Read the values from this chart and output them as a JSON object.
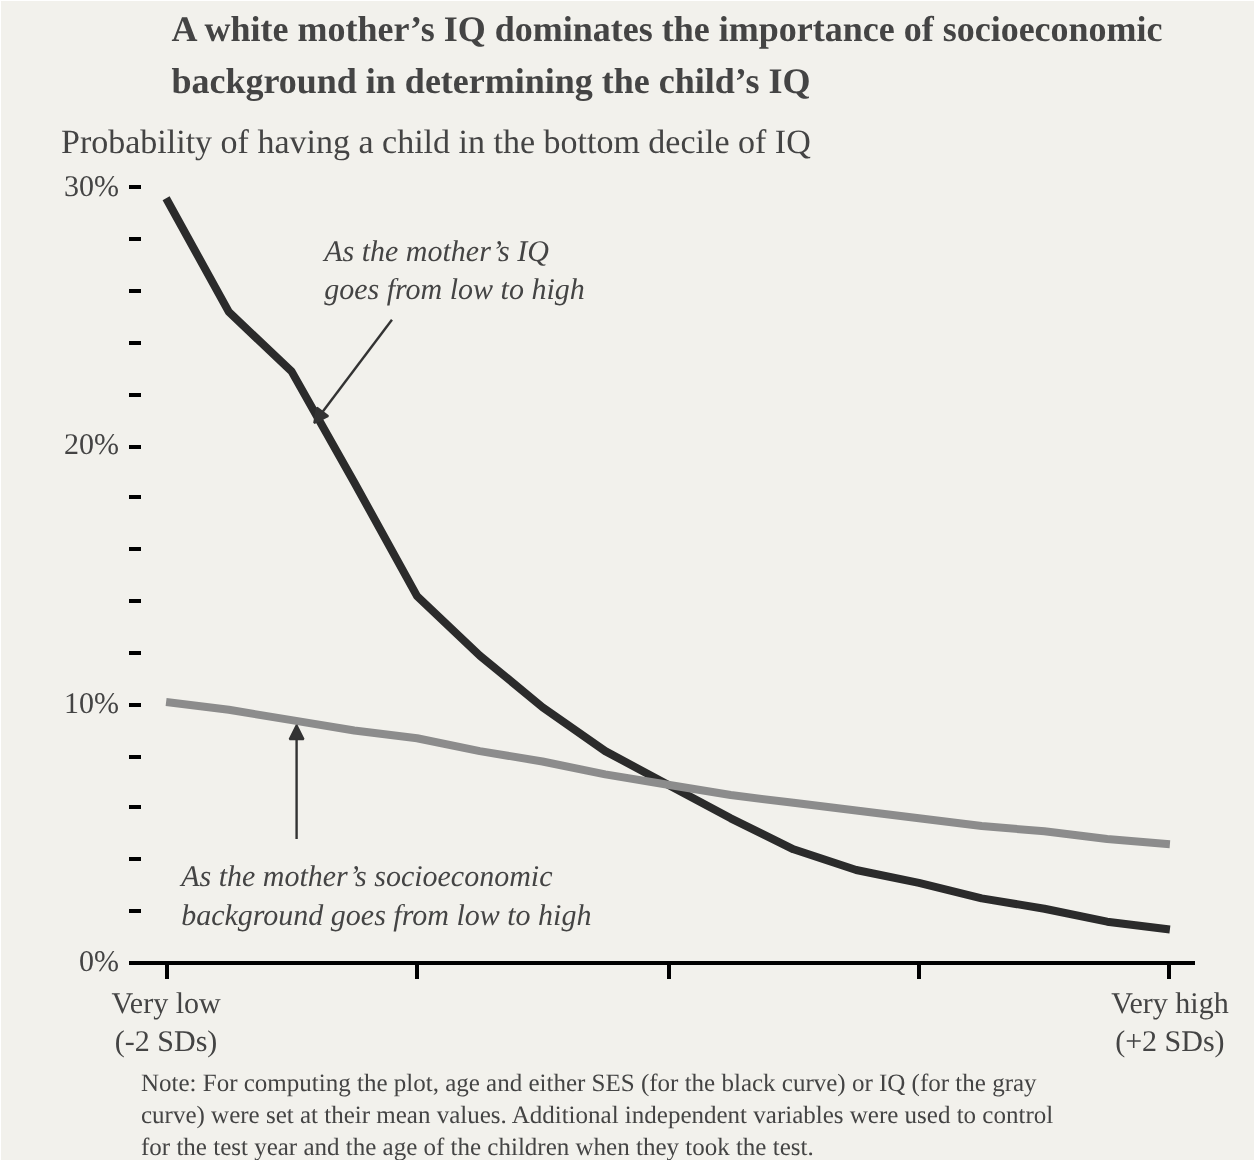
{
  "chart_data": {
    "type": "line",
    "title": "A white mother’s IQ dominates the importance of socioeconomic background in determining the child’s IQ",
    "subtitle": "Probability of having a child in the bottom decile of IQ",
    "x": [
      -2,
      -1.75,
      -1.5,
      -1.25,
      -1,
      -0.75,
      -0.5,
      -0.25,
      0,
      0.25,
      0.5,
      0.75,
      1,
      1.25,
      1.5,
      1.75,
      2
    ],
    "series": [
      {
        "color": "#2b2b2b",
        "values": [
          29.6,
          25.2,
          22.9,
          18.6,
          14.2,
          11.9,
          9.9,
          8.2,
          6.9,
          5.6,
          4.4,
          3.6,
          3.1,
          2.5,
          2.1,
          1.6,
          1.3
        ]
      },
      {
        "color": "#8c8c8c",
        "values": [
          10.1,
          9.8,
          9.4,
          9.0,
          8.7,
          8.2,
          7.8,
          7.3,
          6.9,
          6.5,
          6.2,
          5.9,
          5.6,
          5.3,
          5.1,
          4.8,
          4.6
        ]
      }
    ],
    "xlim": [
      -2.1,
      2.1
    ],
    "ylim": [
      0,
      30.5
    ],
    "xticks": [
      {
        "value": -2,
        "label": "Very low\n(-2 SDs)"
      },
      {
        "value": -1,
        "label": null
      },
      {
        "value": 0,
        "label": null
      },
      {
        "value": 1,
        "label": null
      },
      {
        "value": 2,
        "label": "Very high\n(+2 SDs)"
      }
    ],
    "yticks": [
      {
        "value": 0,
        "label": "0%"
      },
      {
        "value": 2,
        "label": null
      },
      {
        "value": 4,
        "label": null
      },
      {
        "value": 6,
        "label": null
      },
      {
        "value": 8,
        "label": null
      },
      {
        "value": 10,
        "label": "10%"
      },
      {
        "value": 12,
        "label": null
      },
      {
        "value": 14,
        "label": null
      },
      {
        "value": 16,
        "label": null
      },
      {
        "value": 18,
        "label": null
      },
      {
        "value": 20,
        "label": "20%"
      },
      {
        "value": 22,
        "label": null
      },
      {
        "value": 24,
        "label": null
      },
      {
        "value": 26,
        "label": null
      },
      {
        "value": 28,
        "label": null
      },
      {
        "value": 30,
        "label": "30%"
      }
    ],
    "annotations": [
      {
        "text": "As the mother’s IQ\ngoes from low to high",
        "x": -1.41,
        "y": 20.9
      },
      {
        "text": "As the mother’s socioeconomic\nbackground goes from low to high",
        "x": -1.48,
        "y": 9.2
      },
      "Note: For computing the plot, age and either SES (for the black curve) or IQ (for the gray curve) were set at their mean values. Additional independent variables were used to control for the test year and the age of the children when they took the test."
    ],
    "grid": false,
    "line_style": "solid",
    "marker": "none"
  }
}
